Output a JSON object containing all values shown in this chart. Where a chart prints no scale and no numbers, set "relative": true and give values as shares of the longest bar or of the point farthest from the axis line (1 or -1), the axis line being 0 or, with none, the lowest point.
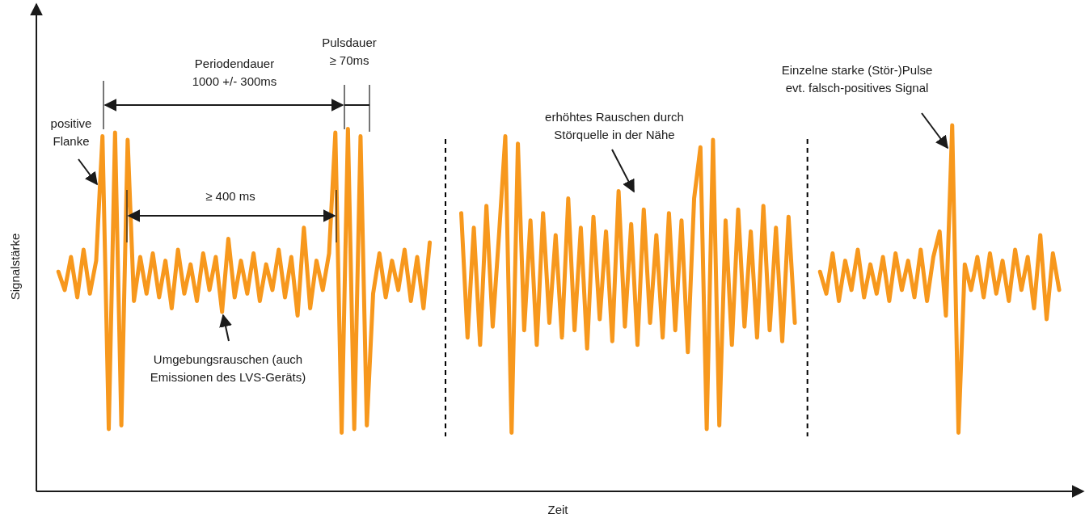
{
  "chart_data": {
    "type": "line",
    "relative": true,
    "xlabel": "Zeit",
    "ylabel": "Signalstärke",
    "marker": "none",
    "line_style": "solid",
    "categories": [
      null,
      null,
      null,
      null,
      null,
      null,
      null,
      null,
      null,
      null,
      null,
      null,
      null,
      null,
      null,
      null,
      null,
      null,
      null,
      null,
      null,
      null,
      null,
      null,
      null,
      null,
      null,
      null,
      null,
      null,
      null,
      null,
      null,
      null,
      null,
      null,
      null,
      null,
      null,
      null,
      null,
      null,
      null,
      null,
      null,
      null,
      null,
      null,
      null,
      null,
      null,
      null,
      null,
      null,
      null,
      null,
      null,
      null,
      null,
      null,
      null,
      null,
      null,
      null,
      null,
      null,
      null,
      null,
      null,
      null,
      null,
      null,
      null,
      null,
      null,
      null,
      null,
      null,
      null,
      null,
      null,
      null,
      null,
      null,
      null,
      null,
      null,
      null,
      null,
      null,
      null,
      null,
      null,
      null,
      null,
      null,
      null,
      null,
      null,
      null,
      null,
      null,
      null,
      null,
      null,
      null,
      null,
      null,
      null,
      null,
      null,
      null,
      null,
      null,
      null,
      null,
      null,
      null,
      null,
      null,
      null,
      null,
      null,
      null,
      null,
      null,
      null,
      null,
      null,
      null,
      null,
      null,
      null,
      null,
      null,
      null,
      null,
      null,
      null,
      null,
      null,
      null,
      null,
      null,
      null,
      null,
      null,
      null,
      null,
      null,
      null,
      null,
      null,
      null,
      null,
      null,
      null,
      null,
      null,
      null
    ],
    "series": [
      {
        "color": "#f7981d",
        "values": [
          0.6,
          0.55,
          0.64,
          0.53,
          0.66,
          0.54,
          0.63,
          0.97,
          0.17,
          0.98,
          0.18,
          0.96,
          0.52,
          0.64,
          0.54,
          0.65,
          0.53,
          0.63,
          0.5,
          0.66,
          0.54,
          0.62,
          0.52,
          0.65,
          0.55,
          0.64,
          0.49,
          0.69,
          0.53,
          0.63,
          0.54,
          0.65,
          0.52,
          0.62,
          0.55,
          0.66,
          0.53,
          0.64,
          0.48,
          0.72,
          0.5,
          0.63,
          0.55,
          0.65,
          0.98,
          0.16,
          0.99,
          0.17,
          0.97,
          0.18,
          0.54,
          0.65,
          0.53,
          0.63,
          0.55,
          0.66,
          0.52,
          0.64,
          0.5,
          0.68,
          null,
          null,
          null,
          null,
          null,
          null,
          null,
          null,
          null,
          null,
          null,
          null,
          null,
          null,
          null,
          null,
          null,
          null,
          null,
          null,
          null,
          null,
          null,
          null,
          null,
          null,
          null,
          null,
          null,
          null,
          null,
          null,
          null,
          null,
          null,
          null,
          null,
          null,
          null,
          null,
          null,
          null,
          null,
          null,
          null,
          null,
          null,
          null,
          null,
          null,
          null,
          null,
          null,
          null,
          null,
          null,
          null,
          null,
          null,
          null,
          null,
          null,
          null,
          null,
          null,
          null,
          null,
          null,
          null,
          null,
          null,
          null,
          null,
          null,
          null,
          null,
          null,
          null,
          null,
          null,
          null,
          null,
          null,
          null,
          null,
          null,
          null,
          null,
          null,
          null,
          null,
          null,
          null,
          null,
          null,
          null,
          null,
          null,
          null,
          null
        ]
      },
      {
        "color": "#f7981d",
        "values": [
          null,
          null,
          null,
          null,
          null,
          null,
          null,
          null,
          null,
          null,
          null,
          null,
          null,
          null,
          null,
          null,
          null,
          null,
          null,
          null,
          null,
          null,
          null,
          null,
          null,
          null,
          null,
          null,
          null,
          null,
          null,
          null,
          null,
          null,
          null,
          null,
          null,
          null,
          null,
          null,
          null,
          null,
          null,
          null,
          null,
          null,
          null,
          null,
          null,
          null,
          null,
          null,
          null,
          null,
          null,
          null,
          null,
          null,
          null,
          null,
          null,
          null,
          null,
          null,
          0.76,
          0.42,
          0.72,
          0.4,
          0.78,
          0.45,
          0.7,
          0.97,
          0.16,
          0.95,
          0.44,
          0.74,
          0.4,
          0.76,
          0.46,
          0.7,
          0.42,
          0.8,
          0.44,
          0.72,
          0.39,
          0.75,
          0.47,
          0.71,
          0.41,
          0.82,
          0.45,
          0.73,
          0.4,
          0.77,
          0.46,
          0.7,
          0.42,
          0.76,
          0.44,
          0.74,
          0.38,
          0.8,
          0.94,
          0.17,
          0.96,
          0.18,
          0.74,
          0.4,
          0.77,
          0.45,
          0.71,
          0.42,
          0.78,
          0.44,
          0.72,
          0.41,
          0.75,
          0.46,
          null,
          null,
          null,
          null,
          null,
          null,
          null,
          null,
          null,
          null,
          null,
          null,
          null,
          null,
          null,
          null,
          null,
          null,
          null,
          null,
          null,
          null,
          null,
          null,
          null,
          null,
          null,
          null,
          null,
          null,
          null,
          null,
          null,
          null,
          null,
          null,
          null,
          null,
          null,
          null,
          null,
          null
        ]
      },
      {
        "color": "#f7981d",
        "values": [
          null,
          null,
          null,
          null,
          null,
          null,
          null,
          null,
          null,
          null,
          null,
          null,
          null,
          null,
          null,
          null,
          null,
          null,
          null,
          null,
          null,
          null,
          null,
          null,
          null,
          null,
          null,
          null,
          null,
          null,
          null,
          null,
          null,
          null,
          null,
          null,
          null,
          null,
          null,
          null,
          null,
          null,
          null,
          null,
          null,
          null,
          null,
          null,
          null,
          null,
          null,
          null,
          null,
          null,
          null,
          null,
          null,
          null,
          null,
          null,
          null,
          null,
          null,
          null,
          null,
          null,
          null,
          null,
          null,
          null,
          null,
          null,
          null,
          null,
          null,
          null,
          null,
          null,
          null,
          null,
          null,
          null,
          null,
          null,
          null,
          null,
          null,
          null,
          null,
          null,
          null,
          null,
          null,
          null,
          null,
          null,
          null,
          null,
          null,
          null,
          null,
          null,
          null,
          null,
          null,
          null,
          null,
          null,
          null,
          null,
          null,
          null,
          null,
          null,
          null,
          null,
          null,
          null,
          null,
          null,
          null,
          0.6,
          0.54,
          0.65,
          0.52,
          0.63,
          0.55,
          0.66,
          0.53,
          0.62,
          0.54,
          0.64,
          0.52,
          0.65,
          0.55,
          0.63,
          0.53,
          0.66,
          0.52,
          0.64,
          0.71,
          0.48,
          1.0,
          0.16,
          0.62,
          0.55,
          0.64,
          0.53,
          0.65,
          0.54,
          0.63,
          0.52,
          0.66,
          0.55,
          0.64,
          0.5,
          0.7,
          0.47,
          0.65,
          0.55
        ]
      }
    ],
    "annotations": [
      "Periodendauer\n1000 +/- 300ms",
      "Pulsdauer\n≥ 70ms",
      "positive\nFlanke",
      "≥ 400 ms",
      "Umgebungsrauschen (auch\nEmissionen des LVS-Geräts)",
      "erhöhtes Rauschen durch\nStörquelle in der Nähe",
      "Einzelne starke (Stör-)Pulse\nevt. falsch-positives Signal"
    ]
  }
}
